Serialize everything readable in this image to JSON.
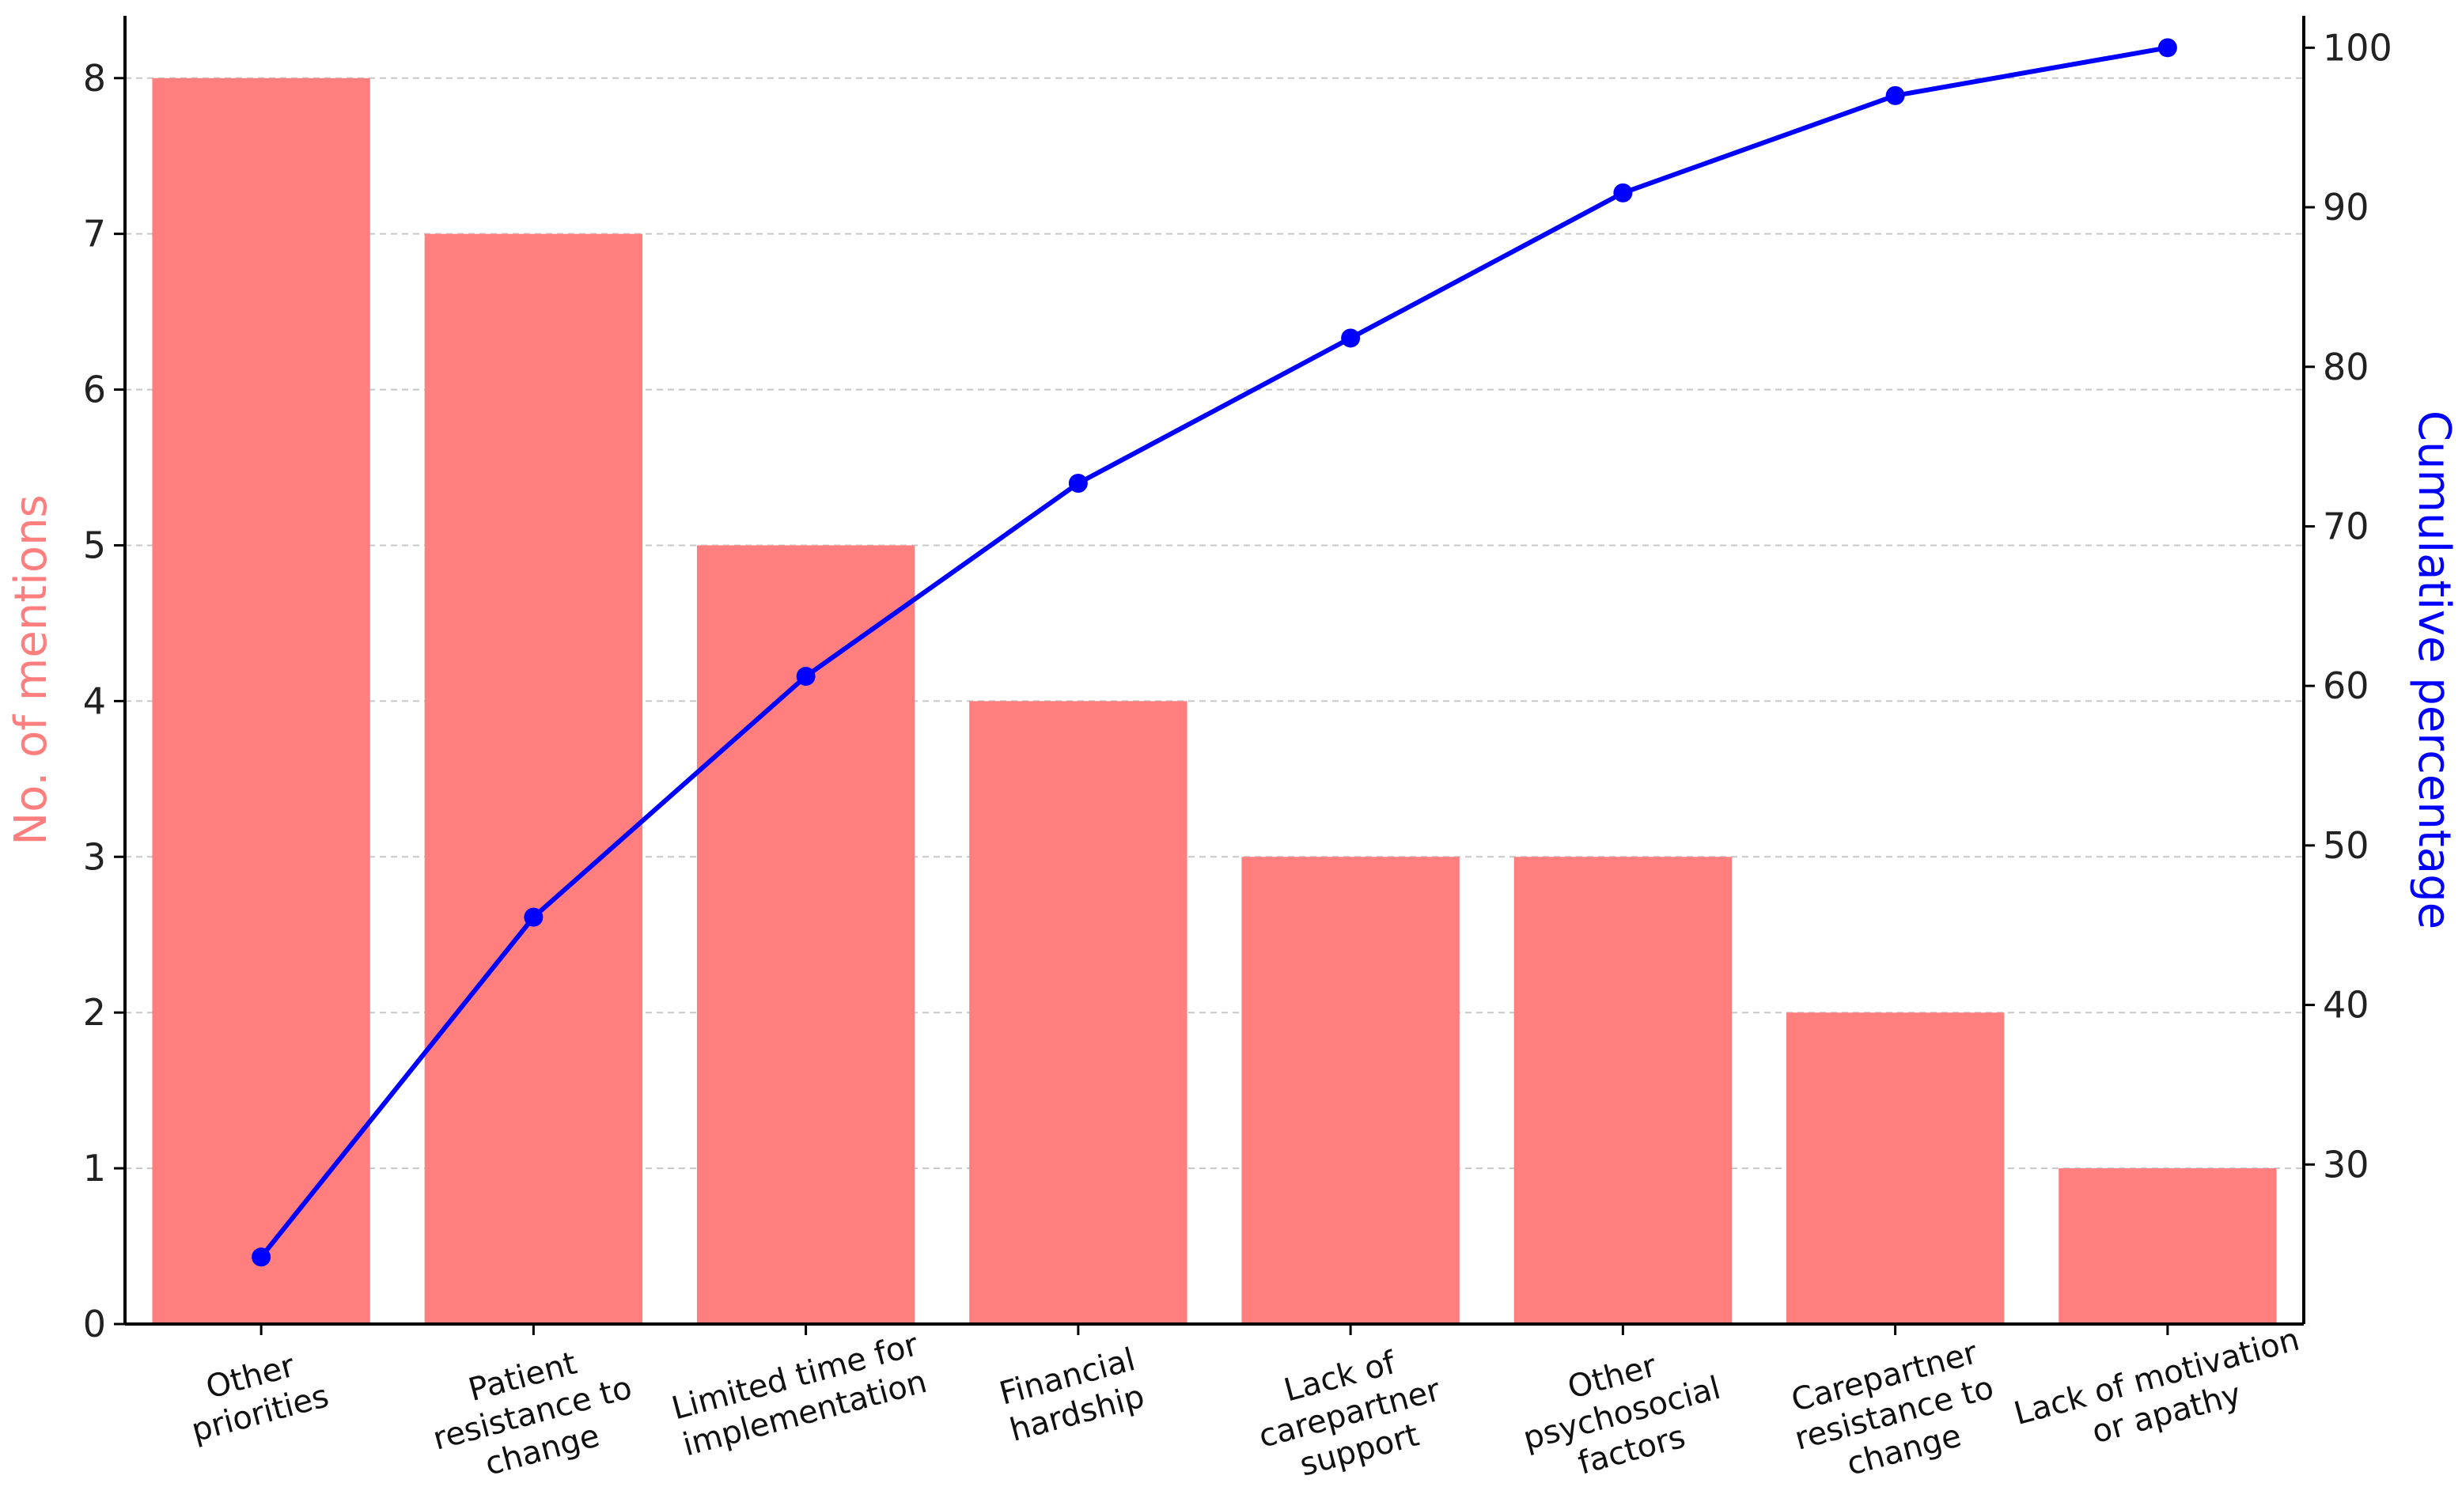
{
  "chart_data": {
    "type": "bar",
    "categories": [
      [
        "Other",
        "priorities"
      ],
      [
        "Patient",
        "resistance to",
        "change"
      ],
      [
        "Limited time for",
        "implementation"
      ],
      [
        "Financial",
        "hardship"
      ],
      [
        "Lack of",
        "carepartner",
        "support"
      ],
      [
        "Other",
        "psychosocial",
        "factors"
      ],
      [
        "Carepartner",
        "resistance to",
        "change"
      ],
      [
        "Lack of motivation",
        "or apathy"
      ]
    ],
    "series": [
      {
        "name": "No. of mentions",
        "type": "bar",
        "axis": "left",
        "color": "#ff7f7f",
        "values": [
          8,
          7,
          5,
          4,
          3,
          3,
          2,
          1
        ]
      },
      {
        "name": "Cumulative percentage",
        "type": "line",
        "axis": "right",
        "color": "#0000ff",
        "values": [
          24.2,
          45.5,
          60.6,
          72.7,
          81.8,
          90.9,
          97.0,
          100.0
        ]
      }
    ],
    "ylabel": "No. of mentions",
    "ylabel_color": "#ff7f7f",
    "y2label": "Cumulative percentage",
    "y2label_color": "#0000ff",
    "ylim": [
      0,
      8.4
    ],
    "y_ticks": [
      "0",
      "1",
      "2",
      "3",
      "4",
      "5",
      "6",
      "7",
      "8"
    ],
    "y2lim": [
      20,
      102
    ],
    "y2_ticks": [
      "30",
      "40",
      "50",
      "60",
      "70",
      "80",
      "90",
      "100"
    ],
    "grid": true,
    "x_label_rotation": -15
  }
}
